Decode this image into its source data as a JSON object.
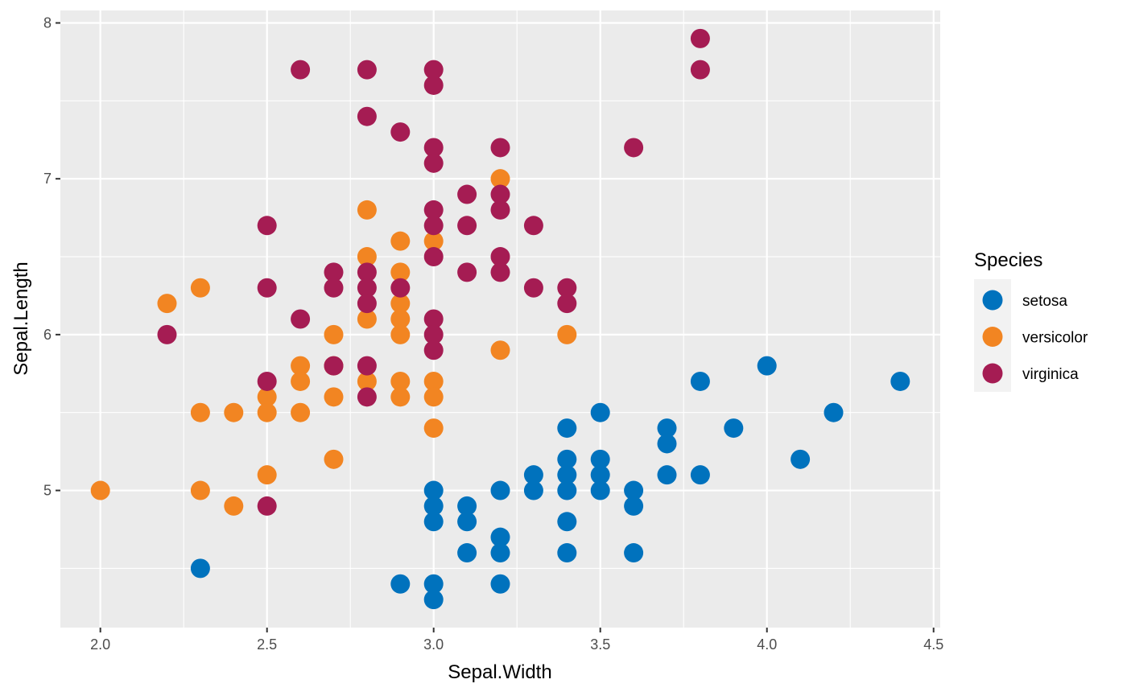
{
  "chart_data": {
    "type": "scatter",
    "title": "",
    "xlabel": "Sepal.Width",
    "ylabel": "Sepal.Length",
    "xlim": [
      1.88,
      4.52
    ],
    "ylim": [
      4.12,
      8.08
    ],
    "xticks": [
      "2.0",
      "2.5",
      "3.0",
      "3.5",
      "4.0",
      "4.5"
    ],
    "yticks": [
      "5",
      "6",
      "7",
      "8"
    ],
    "grid": true,
    "legend": {
      "title": "Species",
      "position": "right"
    },
    "series": [
      {
        "name": "setosa",
        "color": "#0072BD",
        "points": [
          [
            2.3,
            4.5
          ],
          [
            2.9,
            4.4
          ],
          [
            3.0,
            4.4
          ],
          [
            3.0,
            4.3
          ],
          [
            3.0,
            5.0
          ],
          [
            3.0,
            4.9
          ],
          [
            3.0,
            4.8
          ],
          [
            3.1,
            4.9
          ],
          [
            3.1,
            4.8
          ],
          [
            3.1,
            4.6
          ],
          [
            3.2,
            5.0
          ],
          [
            3.2,
            4.7
          ],
          [
            3.2,
            4.6
          ],
          [
            3.2,
            4.4
          ],
          [
            3.3,
            5.1
          ],
          [
            3.3,
            5.0
          ],
          [
            3.4,
            5.4
          ],
          [
            3.4,
            5.2
          ],
          [
            3.4,
            5.1
          ],
          [
            3.4,
            5.0
          ],
          [
            3.4,
            4.8
          ],
          [
            3.4,
            4.6
          ],
          [
            3.5,
            5.5
          ],
          [
            3.5,
            5.2
          ],
          [
            3.5,
            5.1
          ],
          [
            3.5,
            5.0
          ],
          [
            3.6,
            5.0
          ],
          [
            3.6,
            4.9
          ],
          [
            3.6,
            4.6
          ],
          [
            3.7,
            5.4
          ],
          [
            3.7,
            5.3
          ],
          [
            3.7,
            5.1
          ],
          [
            3.8,
            5.7
          ],
          [
            3.8,
            5.1
          ],
          [
            3.9,
            5.4
          ],
          [
            4.0,
            5.8
          ],
          [
            4.1,
            5.2
          ],
          [
            4.2,
            5.5
          ],
          [
            4.4,
            5.7
          ]
        ]
      },
      {
        "name": "versicolor",
        "color": "#F28522",
        "points": [
          [
            2.0,
            5.0
          ],
          [
            2.2,
            6.2
          ],
          [
            2.3,
            6.3
          ],
          [
            2.3,
            5.5
          ],
          [
            2.3,
            5.0
          ],
          [
            2.4,
            5.5
          ],
          [
            2.4,
            4.9
          ],
          [
            2.5,
            5.6
          ],
          [
            2.5,
            5.5
          ],
          [
            2.5,
            5.1
          ],
          [
            2.6,
            5.8
          ],
          [
            2.6,
            5.7
          ],
          [
            2.6,
            5.5
          ],
          [
            2.7,
            6.0
          ],
          [
            2.7,
            5.8
          ],
          [
            2.7,
            5.6
          ],
          [
            2.7,
            5.2
          ],
          [
            2.8,
            6.8
          ],
          [
            2.8,
            6.5
          ],
          [
            2.8,
            6.1
          ],
          [
            2.8,
            5.7
          ],
          [
            2.9,
            6.6
          ],
          [
            2.9,
            6.4
          ],
          [
            2.9,
            6.2
          ],
          [
            2.9,
            6.1
          ],
          [
            2.9,
            6.0
          ],
          [
            2.9,
            5.7
          ],
          [
            2.9,
            5.6
          ],
          [
            3.0,
            6.6
          ],
          [
            3.0,
            5.7
          ],
          [
            3.0,
            5.6
          ],
          [
            3.0,
            5.4
          ],
          [
            3.2,
            7.0
          ],
          [
            3.2,
            5.9
          ],
          [
            3.4,
            6.0
          ]
        ]
      },
      {
        "name": "virginica",
        "color": "#A51C53",
        "points": [
          [
            2.2,
            6.0
          ],
          [
            2.5,
            6.7
          ],
          [
            2.5,
            6.3
          ],
          [
            2.5,
            5.7
          ],
          [
            2.5,
            4.9
          ],
          [
            2.6,
            7.7
          ],
          [
            2.6,
            6.1
          ],
          [
            2.7,
            6.4
          ],
          [
            2.7,
            6.3
          ],
          [
            2.7,
            5.8
          ],
          [
            2.8,
            7.7
          ],
          [
            2.8,
            7.4
          ],
          [
            2.8,
            6.4
          ],
          [
            2.8,
            6.3
          ],
          [
            2.8,
            6.2
          ],
          [
            2.8,
            5.8
          ],
          [
            2.8,
            5.6
          ],
          [
            2.9,
            7.3
          ],
          [
            2.9,
            6.3
          ],
          [
            3.0,
            7.7
          ],
          [
            3.0,
            7.6
          ],
          [
            3.0,
            7.2
          ],
          [
            3.0,
            7.1
          ],
          [
            3.0,
            6.8
          ],
          [
            3.0,
            6.7
          ],
          [
            3.0,
            6.5
          ],
          [
            3.0,
            6.1
          ],
          [
            3.0,
            6.0
          ],
          [
            3.0,
            5.9
          ],
          [
            3.1,
            6.9
          ],
          [
            3.1,
            6.7
          ],
          [
            3.1,
            6.4
          ],
          [
            3.2,
            7.2
          ],
          [
            3.2,
            6.9
          ],
          [
            3.2,
            6.8
          ],
          [
            3.2,
            6.5
          ],
          [
            3.2,
            6.4
          ],
          [
            3.3,
            6.7
          ],
          [
            3.3,
            6.3
          ],
          [
            3.4,
            6.3
          ],
          [
            3.4,
            6.2
          ],
          [
            3.6,
            7.2
          ],
          [
            3.8,
            7.9
          ],
          [
            3.8,
            7.7
          ]
        ]
      }
    ]
  }
}
